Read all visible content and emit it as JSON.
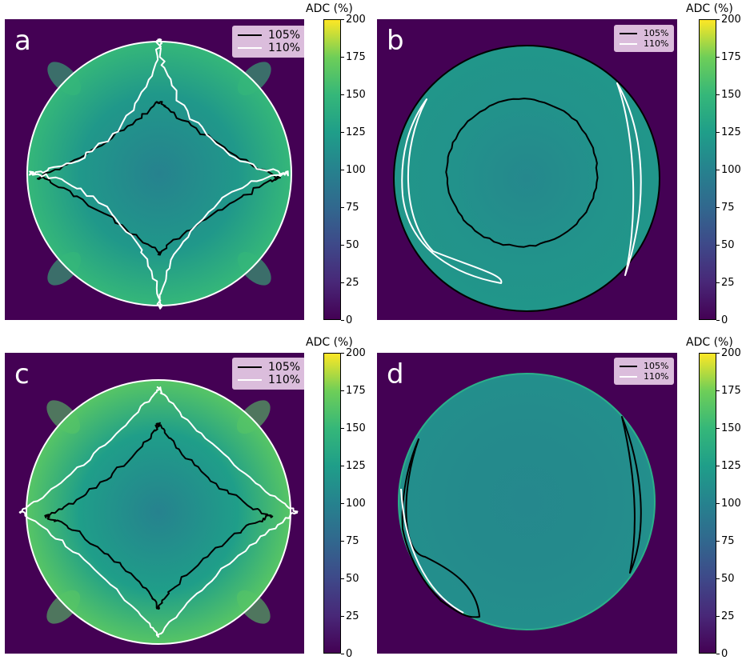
{
  "chart_data": [
    {
      "type": "heatmap",
      "panel_label": "a",
      "colorbar": {
        "title": "ADC (%)",
        "range": [
          0,
          200
        ],
        "ticks": [
          "0",
          "25",
          "50",
          "75",
          "100",
          "125",
          "150",
          "175",
          "200"
        ],
        "colormap": "viridis"
      },
      "legend": {
        "placement": "top-right",
        "entries": [
          {
            "label": "105%",
            "color": "#000000"
          },
          {
            "label": "110%",
            "color": "#ffffff"
          }
        ]
      },
      "field": {
        "background_value": 0,
        "center_value": 100,
        "mid_value": 120,
        "corner_max_value": 150
      }
    },
    {
      "type": "heatmap",
      "panel_label": "b",
      "colorbar": {
        "title": "ADC (%)",
        "range": [
          0,
          200
        ],
        "ticks": [
          "0",
          "25",
          "50",
          "75",
          "100",
          "125",
          "150",
          "175",
          "200"
        ],
        "colormap": "viridis"
      },
      "legend": {
        "placement": "top-right",
        "entries": [
          {
            "label": "105%",
            "color": "#000000"
          },
          {
            "label": "110%",
            "color": "#ffffff"
          }
        ]
      },
      "field": {
        "background_value": 0,
        "center_value": 105,
        "mid_value": 115,
        "corner_max_value": 118
      }
    },
    {
      "type": "heatmap",
      "panel_label": "c",
      "colorbar": {
        "title": "ADC (%)",
        "range": [
          0,
          200
        ],
        "ticks": [
          "0",
          "25",
          "50",
          "75",
          "100",
          "125",
          "150",
          "175",
          "200"
        ],
        "colormap": "viridis"
      },
      "legend": {
        "placement": "top-right",
        "entries": [
          {
            "label": "105%",
            "color": "#000000"
          },
          {
            "label": "110%",
            "color": "#ffffff"
          }
        ]
      },
      "field": {
        "background_value": 0,
        "center_value": 100,
        "mid_value": 125,
        "corner_max_value": 165
      }
    },
    {
      "type": "heatmap",
      "panel_label": "d",
      "colorbar": {
        "title": "ADC (%)",
        "range": [
          0,
          200
        ],
        "ticks": [
          "0",
          "25",
          "50",
          "75",
          "100",
          "125",
          "150",
          "175",
          "200"
        ],
        "colormap": "viridis"
      },
      "legend": {
        "placement": "top-right",
        "entries": [
          {
            "label": "105%",
            "color": "#000000"
          },
          {
            "label": "110%",
            "color": "#ffffff"
          }
        ]
      },
      "field": {
        "background_value": 0,
        "center_value": 105,
        "mid_value": 108,
        "corner_max_value": 112
      }
    }
  ]
}
